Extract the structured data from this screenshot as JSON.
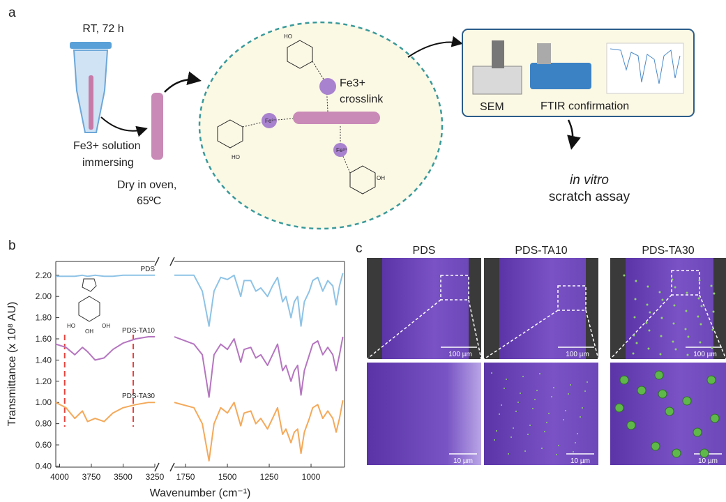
{
  "panel_a": {
    "label": "a",
    "time": "RT, 72 h",
    "step1": [
      "Fe3+ solution",
      "immersing"
    ],
    "step2": [
      "Dry in oven,",
      "65ºC"
    ],
    "crosslink": [
      "Fe3+",
      "crosslink"
    ],
    "instruments": [
      "SEM",
      "FTIR confirmation"
    ],
    "assay": [
      "in vitro",
      "scratch assay"
    ],
    "chem_labels": [
      "HO",
      "OH",
      "HO",
      "Fe³⁺",
      "Fe³⁺"
    ]
  },
  "chart_data": {
    "type": "line",
    "panel_label": "b",
    "x_label": "Wavenumber (cm⁻¹)",
    "y_label": "Transmittance (x 10⁸ AU)",
    "x_segments": [
      [
        4030,
        3250
      ],
      [
        1817,
        800
      ]
    ],
    "x": [
      4030,
      3950,
      3880,
      3820,
      3780,
      3720,
      3650,
      3580,
      3500,
      3400,
      3300,
      3250,
      1817,
      1700,
      1650,
      1610,
      1580,
      1540,
      1500,
      1460,
      1420,
      1400,
      1360,
      1330,
      1300,
      1260,
      1230,
      1200,
      1170,
      1150,
      1120,
      1100,
      1080,
      1060,
      1040,
      1010,
      990,
      960,
      930,
      900,
      870,
      850,
      830,
      810
    ],
    "series": [
      {
        "name": "PDS",
        "color": "#8ec3e6",
        "values": [
          2.19,
          2.19,
          2.19,
          2.2,
          2.19,
          2.2,
          2.19,
          2.19,
          2.2,
          2.2,
          2.2,
          2.2,
          2.2,
          2.2,
          2.05,
          1.72,
          2.05,
          2.18,
          2.16,
          2.2,
          2.0,
          2.15,
          2.15,
          2.05,
          2.08,
          2.0,
          2.1,
          2.18,
          1.95,
          2.0,
          1.8,
          1.95,
          2.0,
          1.72,
          1.95,
          2.05,
          2.15,
          2.18,
          2.05,
          2.15,
          2.1,
          1.92,
          2.1,
          2.22
        ]
      },
      {
        "name": "PDS-TA10",
        "color": "#b575c0",
        "values": [
          1.55,
          1.52,
          1.45,
          1.52,
          1.48,
          1.4,
          1.42,
          1.5,
          1.56,
          1.6,
          1.62,
          1.62,
          1.62,
          1.55,
          1.45,
          1.05,
          1.45,
          1.55,
          1.5,
          1.6,
          1.38,
          1.5,
          1.52,
          1.42,
          1.45,
          1.35,
          1.45,
          1.55,
          1.3,
          1.35,
          1.2,
          1.3,
          1.35,
          1.07,
          1.3,
          1.45,
          1.55,
          1.58,
          1.45,
          1.52,
          1.45,
          1.3,
          1.45,
          1.62
        ]
      },
      {
        "name": "PDS-TA30",
        "color": "#f4a95a",
        "values": [
          1.0,
          0.95,
          0.85,
          0.92,
          0.82,
          0.85,
          0.82,
          0.9,
          0.95,
          0.98,
          1.0,
          1.0,
          1.0,
          0.95,
          0.8,
          0.45,
          0.8,
          0.95,
          0.9,
          1.0,
          0.78,
          0.9,
          0.92,
          0.8,
          0.85,
          0.75,
          0.85,
          0.95,
          0.7,
          0.75,
          0.62,
          0.72,
          0.75,
          0.52,
          0.72,
          0.85,
          0.95,
          0.98,
          0.85,
          0.92,
          0.85,
          0.72,
          0.85,
          1.02
        ]
      }
    ],
    "ylim": [
      0.39,
      2.33
    ],
    "yticks": [
      {
        "value": 0.4,
        "label": "0.40"
      },
      {
        "value": 0.6,
        "label": "0.60"
      },
      {
        "value": 0.8,
        "label": "0.80"
      },
      {
        "value": 1.0,
        "label": "1.00"
      },
      {
        "value": 1.2,
        "label": "1.20"
      },
      {
        "value": 1.4,
        "label": "1.40"
      },
      {
        "value": 1.6,
        "label": "1.60"
      },
      {
        "value": 1.8,
        "label": "1.80"
      },
      {
        "value": 2.0,
        "label": "2.00"
      },
      {
        "value": 2.2,
        "label": "2.20"
      }
    ],
    "xticks": [
      4000,
      3750,
      3500,
      3250,
      1750,
      1500,
      1250,
      1000
    ],
    "highlight_x": [
      3960,
      3420
    ],
    "highlight_color": "#e8413c",
    "inset_labels": [
      "HO",
      "OH",
      "OH"
    ]
  },
  "panel_c": {
    "label": "c",
    "columns": [
      "PDS",
      "PDS-TA10",
      "PDS-TA30"
    ],
    "scale_top": [
      "100 µm",
      "100 µm",
      "100 µm"
    ],
    "scale_bottom": [
      "10 µm",
      "10 µm",
      "10 µm"
    ]
  }
}
